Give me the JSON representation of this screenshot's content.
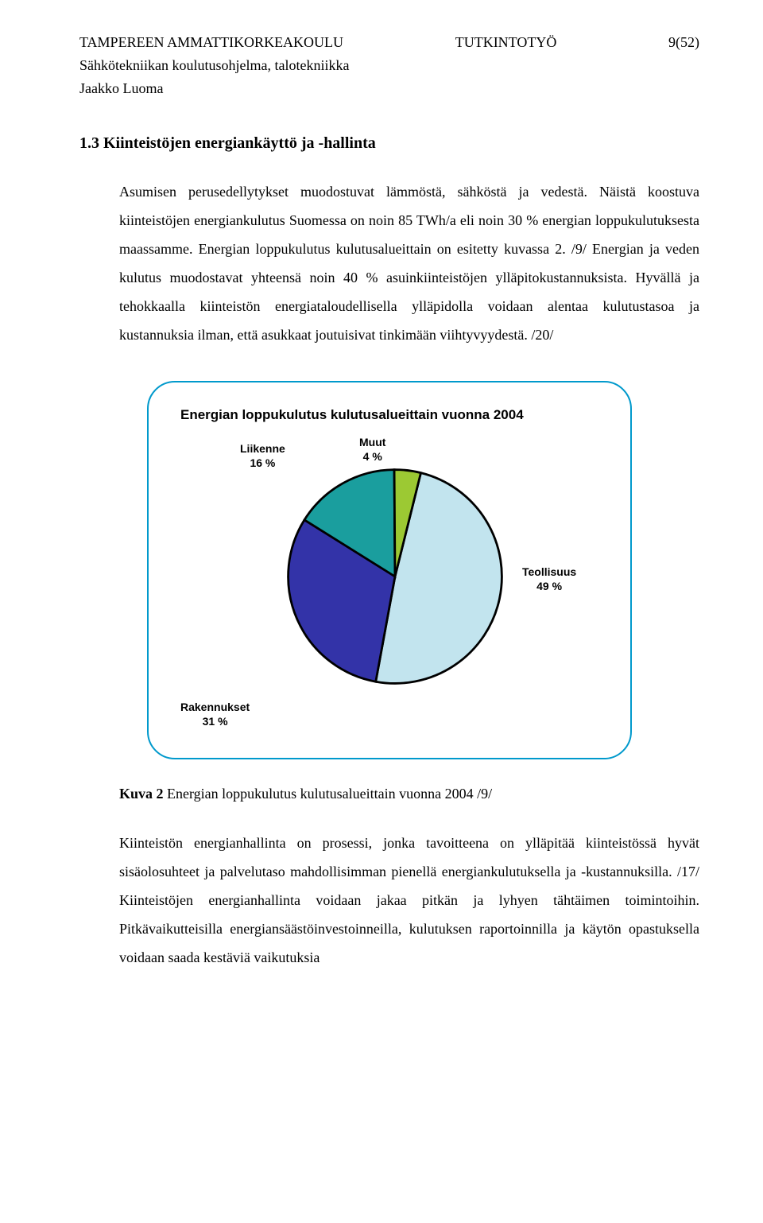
{
  "header": {
    "institution": "TAMPEREEN AMMATTIKORKEAKOULU",
    "doctype": "TUTKINTOTYÖ",
    "page": "9(52)",
    "program": "Sähkötekniikan koulutusohjelma, talotekniikka",
    "author": "Jaakko Luoma"
  },
  "section": {
    "number": "1.3",
    "title": "Kiinteistöjen energiankäyttö ja -hallinta"
  },
  "paragraph1": "Asumisen perusedellytykset muodostuvat lämmöstä, sähköstä ja vedestä. Näistä koostuva kiinteistöjen energiankulutus Suomessa on noin 85 TWh/a eli noin 30 % energian loppukulutuksesta maassamme. Energian loppukulutus kulutusalueittain on esitetty kuvassa 2. /9/ Energian ja veden kulutus muodostavat yhteensä noin 40 % asuinkiinteistöjen ylläpitokustannuksista. Hyvällä ja tehokkaalla kiinteistön energiataloudellisella ylläpidolla voidaan alentaa kulutustasoa ja kustannuksia ilman, että asukkaat joutuisivat tinkimään viihtyvyydestä. /20/",
  "chart": {
    "type": "pie",
    "title": "Energian loppukulutus kulutusalueittain vuonna 2004",
    "title_fontsize": 17,
    "border_color": "#0099cc",
    "border_radius": 35,
    "background_color": "#ffffff",
    "label_fontsize": 14,
    "label_font_weight": "bold",
    "slices": [
      {
        "label": "Teollisuus",
        "pct": 49,
        "display": "Teollisuus\n49 %",
        "color": "#c2e4ee",
        "stroke": "#000000"
      },
      {
        "label": "Rakennukset",
        "pct": 31,
        "display": "Rakennukset\n31 %",
        "color": "#3333a8",
        "stroke": "#000000"
      },
      {
        "label": "Liikenne",
        "pct": 16,
        "display": "Liikenne\n16 %",
        "color": "#1a9e9e",
        "stroke": "#000000"
      },
      {
        "label": "Muut",
        "pct": 4,
        "display": "Muut\n4 %",
        "color": "#9cc933",
        "stroke": "#000000"
      }
    ],
    "start_angle_deg": -76,
    "stroke_width": 1
  },
  "caption": {
    "prefix": "Kuva 2",
    "text": " Energian loppukulutus kulutusalueittain vuonna 2004 /9/"
  },
  "paragraph2": "Kiinteistön energianhallinta on prosessi, jonka tavoitteena on ylläpitää kiinteistössä hyvät sisäolosuhteet ja palvelutaso mahdollisimman pienellä energiankulutuksella ja -kustannuksilla. /17/ Kiinteistöjen energianhallinta voidaan jakaa pitkän ja lyhyen tähtäimen toimintoihin. Pitkävaikutteisilla energiansäästöinvestoinneilla, kulutuksen raportoinnilla ja käytön opastuksella voidaan saada kestäviä vaikutuksia"
}
